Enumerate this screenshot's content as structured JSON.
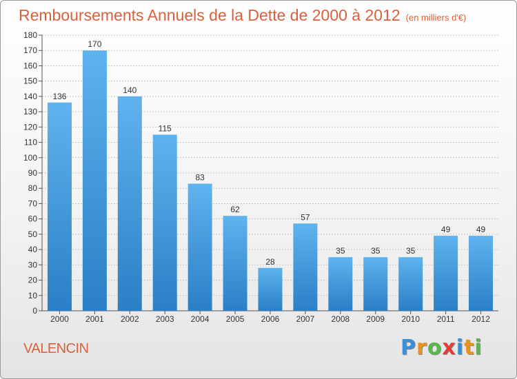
{
  "header": {
    "title": "Remboursements Annuels de la Dette de 2000 à 2012",
    "unit": "(en milliers d'€)"
  },
  "footer": {
    "city": "VALENCIN",
    "brand_letters": [
      {
        "char": "P",
        "color": "#3a8fd6"
      },
      {
        "char": "r",
        "color": "#e8931e"
      },
      {
        "char": "o",
        "color": "#59b84a"
      },
      {
        "char": "x",
        "color": "#e23c3c"
      },
      {
        "char": "i",
        "color": "#3a8fd6"
      },
      {
        "char": "t",
        "color": "#e8931e"
      },
      {
        "char": "i",
        "color": "#59b84a"
      }
    ]
  },
  "colors": {
    "bar_light": "#5fb3ee",
    "bar_dark": "#2a7fc6",
    "title": "#d9603a",
    "grid": "#c8c8c8"
  },
  "chart_data": {
    "type": "bar",
    "title": "Remboursements Annuels de la Dette de 2000 à 2012",
    "ylabel": "en milliers d'€",
    "xlabel": "",
    "categories": [
      "2000",
      "2001",
      "2002",
      "2003",
      "2004",
      "2005",
      "2006",
      "2007",
      "2008",
      "2009",
      "2010",
      "2011",
      "2012"
    ],
    "values": [
      136,
      170,
      140,
      115,
      83,
      62,
      28,
      57,
      35,
      35,
      35,
      49,
      49
    ],
    "ylim": [
      0,
      180
    ],
    "yticks": [
      0,
      10,
      20,
      30,
      40,
      50,
      60,
      70,
      80,
      90,
      100,
      110,
      120,
      130,
      140,
      150,
      160,
      170,
      180
    ],
    "grid": true
  }
}
